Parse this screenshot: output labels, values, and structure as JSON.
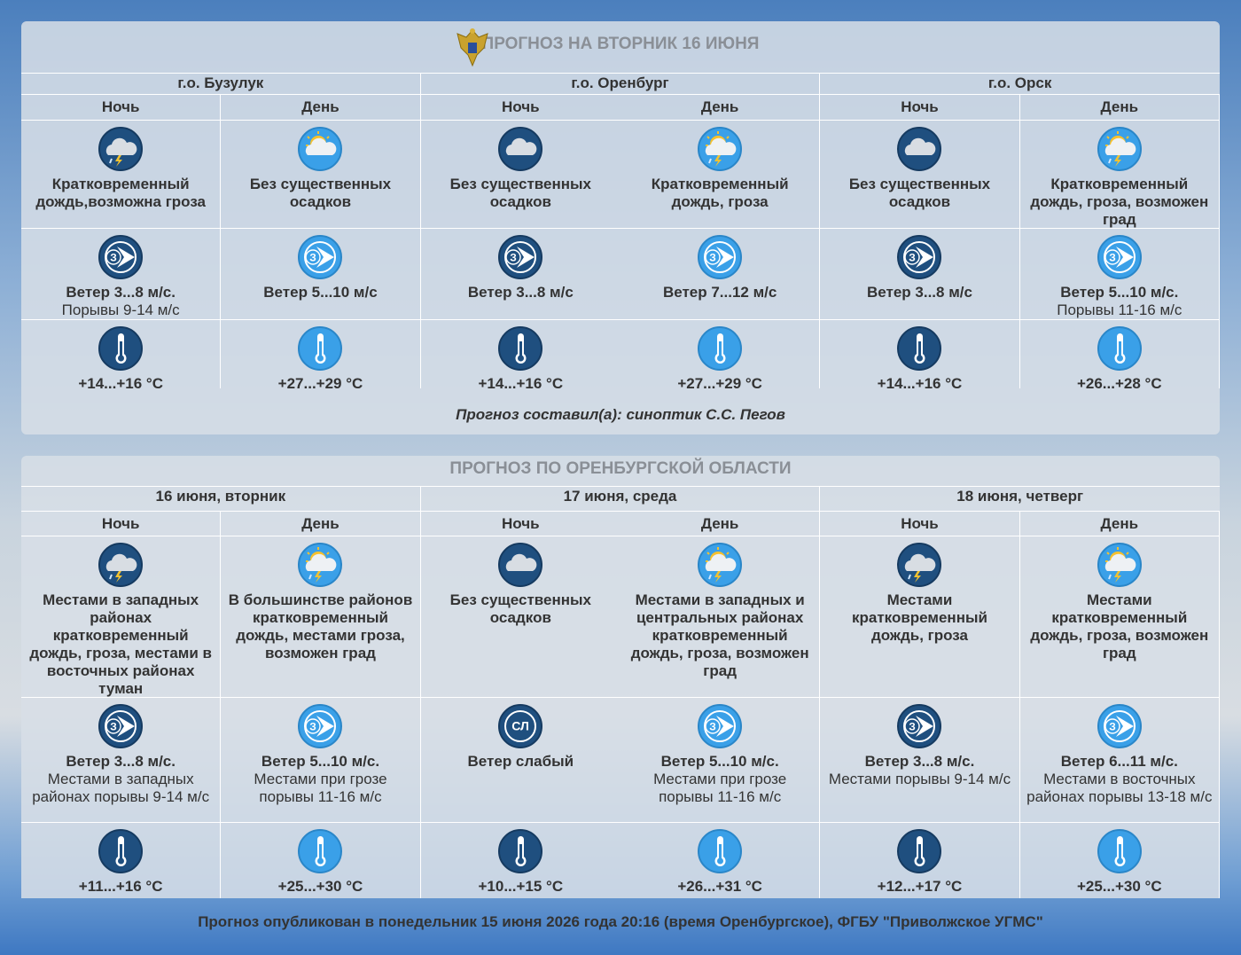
{
  "panels": [
    {
      "title": "ПРОГНОЗ НА ВТОРНИК 16 ИЮНЯ",
      "groups": [
        {
          "name": "г.о. Бузулук",
          "periods": [
            {
              "label": "Ночь",
              "weather": "Кратковременный дождь,возможна гроза",
              "direction": "З",
              "wind": "Ветер 3...8 м/с.",
              "gust": "Порывы 9-14 м/с",
              "temp": "+14...+16 °C"
            },
            {
              "label": "День",
              "weather": "Без существенных осадков",
              "direction": "З",
              "wind": "Ветер 5...10 м/с",
              "temp": "+27...+29 °C"
            }
          ]
        },
        {
          "name": "г.о. Оренбург",
          "periods": [
            {
              "label": "Ночь",
              "weather": "Без существенных осадков",
              "direction": "З",
              "wind": "Ветер 3...8 м/с",
              "temp": "+14...+16 °C"
            },
            {
              "label": "День",
              "weather": "Кратковременный дождь, гроза",
              "direction": "З",
              "wind": "Ветер 7...12 м/с",
              "temp": "+27...+29 °C"
            }
          ]
        },
        {
          "name": "г.о. Орск",
          "periods": [
            {
              "label": "Ночь",
              "weather": "Без существенных осадков",
              "direction": "З",
              "wind": "Ветер 3...8 м/с",
              "temp": "+14...+16 °C"
            },
            {
              "label": "День",
              "weather": "Кратковременный дождь, гроза, возможен град",
              "direction": "З",
              "wind": "Ветер 5...10 м/с.",
              "gust": "Порывы 11-16 м/с",
              "temp": "+26...+28 °C"
            }
          ]
        }
      ],
      "author": "Прогноз составил(а): синоптик С.С. Пегов"
    },
    {
      "title": "ПРОГНОЗ ПО ОРЕНБУРГСКОЙ ОБЛАСТИ",
      "groups": [
        {
          "name": "16 июня, вторник",
          "periods": [
            {
              "label": "Ночь",
              "weather": "Местами в западных районах кратковременный дождь, гроза, местами в восточных районах туман",
              "direction": "З",
              "wind": "Ветер 3...8 м/с.",
              "gust": "Местами в западных районах порывы 9-14 м/с",
              "temp": "+11...+16 °C"
            },
            {
              "label": "День",
              "weather": "В большинстве районов кратковременный дождь, местами гроза, возможен град",
              "direction": "З",
              "wind": "Ветер 5...10 м/с.",
              "gust": "Местами при грозе порывы 11-16 м/с",
              "temp": "+25...+30 °C"
            }
          ]
        },
        {
          "name": "17 июня, среда",
          "periods": [
            {
              "label": "Ночь",
              "weather": "Без существенных осадков",
              "direction": "СЛ",
              "wind": "Ветер слабый",
              "temp": "+10...+15 °C"
            },
            {
              "label": "День",
              "weather": "Местами в западных и центральных районах кратковременный дождь, гроза, возможен град",
              "direction": "З",
              "wind": "Ветер 5...10 м/с.",
              "gust": "Местами при грозе порывы 11-16 м/с",
              "temp": "+26...+31 °C"
            }
          ]
        },
        {
          "name": "18 июня, четверг",
          "periods": [
            {
              "label": "Ночь",
              "weather": "Местами кратковременный дождь, гроза",
              "direction": "З",
              "wind": "Ветер 3...8 м/с.",
              "gust": "Местами порывы 9-14 м/с",
              "temp": "+12...+17 °C"
            },
            {
              "label": "День",
              "weather": "Местами кратковременный дождь, гроза, возможен град",
              "direction": "З",
              "wind": "Ветер 6...11 м/с.",
              "gust": "Местами в восточных районах порывы 13-18 м/с",
              "temp": "+25...+30 °C"
            }
          ]
        }
      ]
    }
  ],
  "footer": "Прогноз опубликован в понедельник 15 июня 2026 года 20:16 (время Оренбургское), ФГБУ \"Приволжское УГМС\""
}
